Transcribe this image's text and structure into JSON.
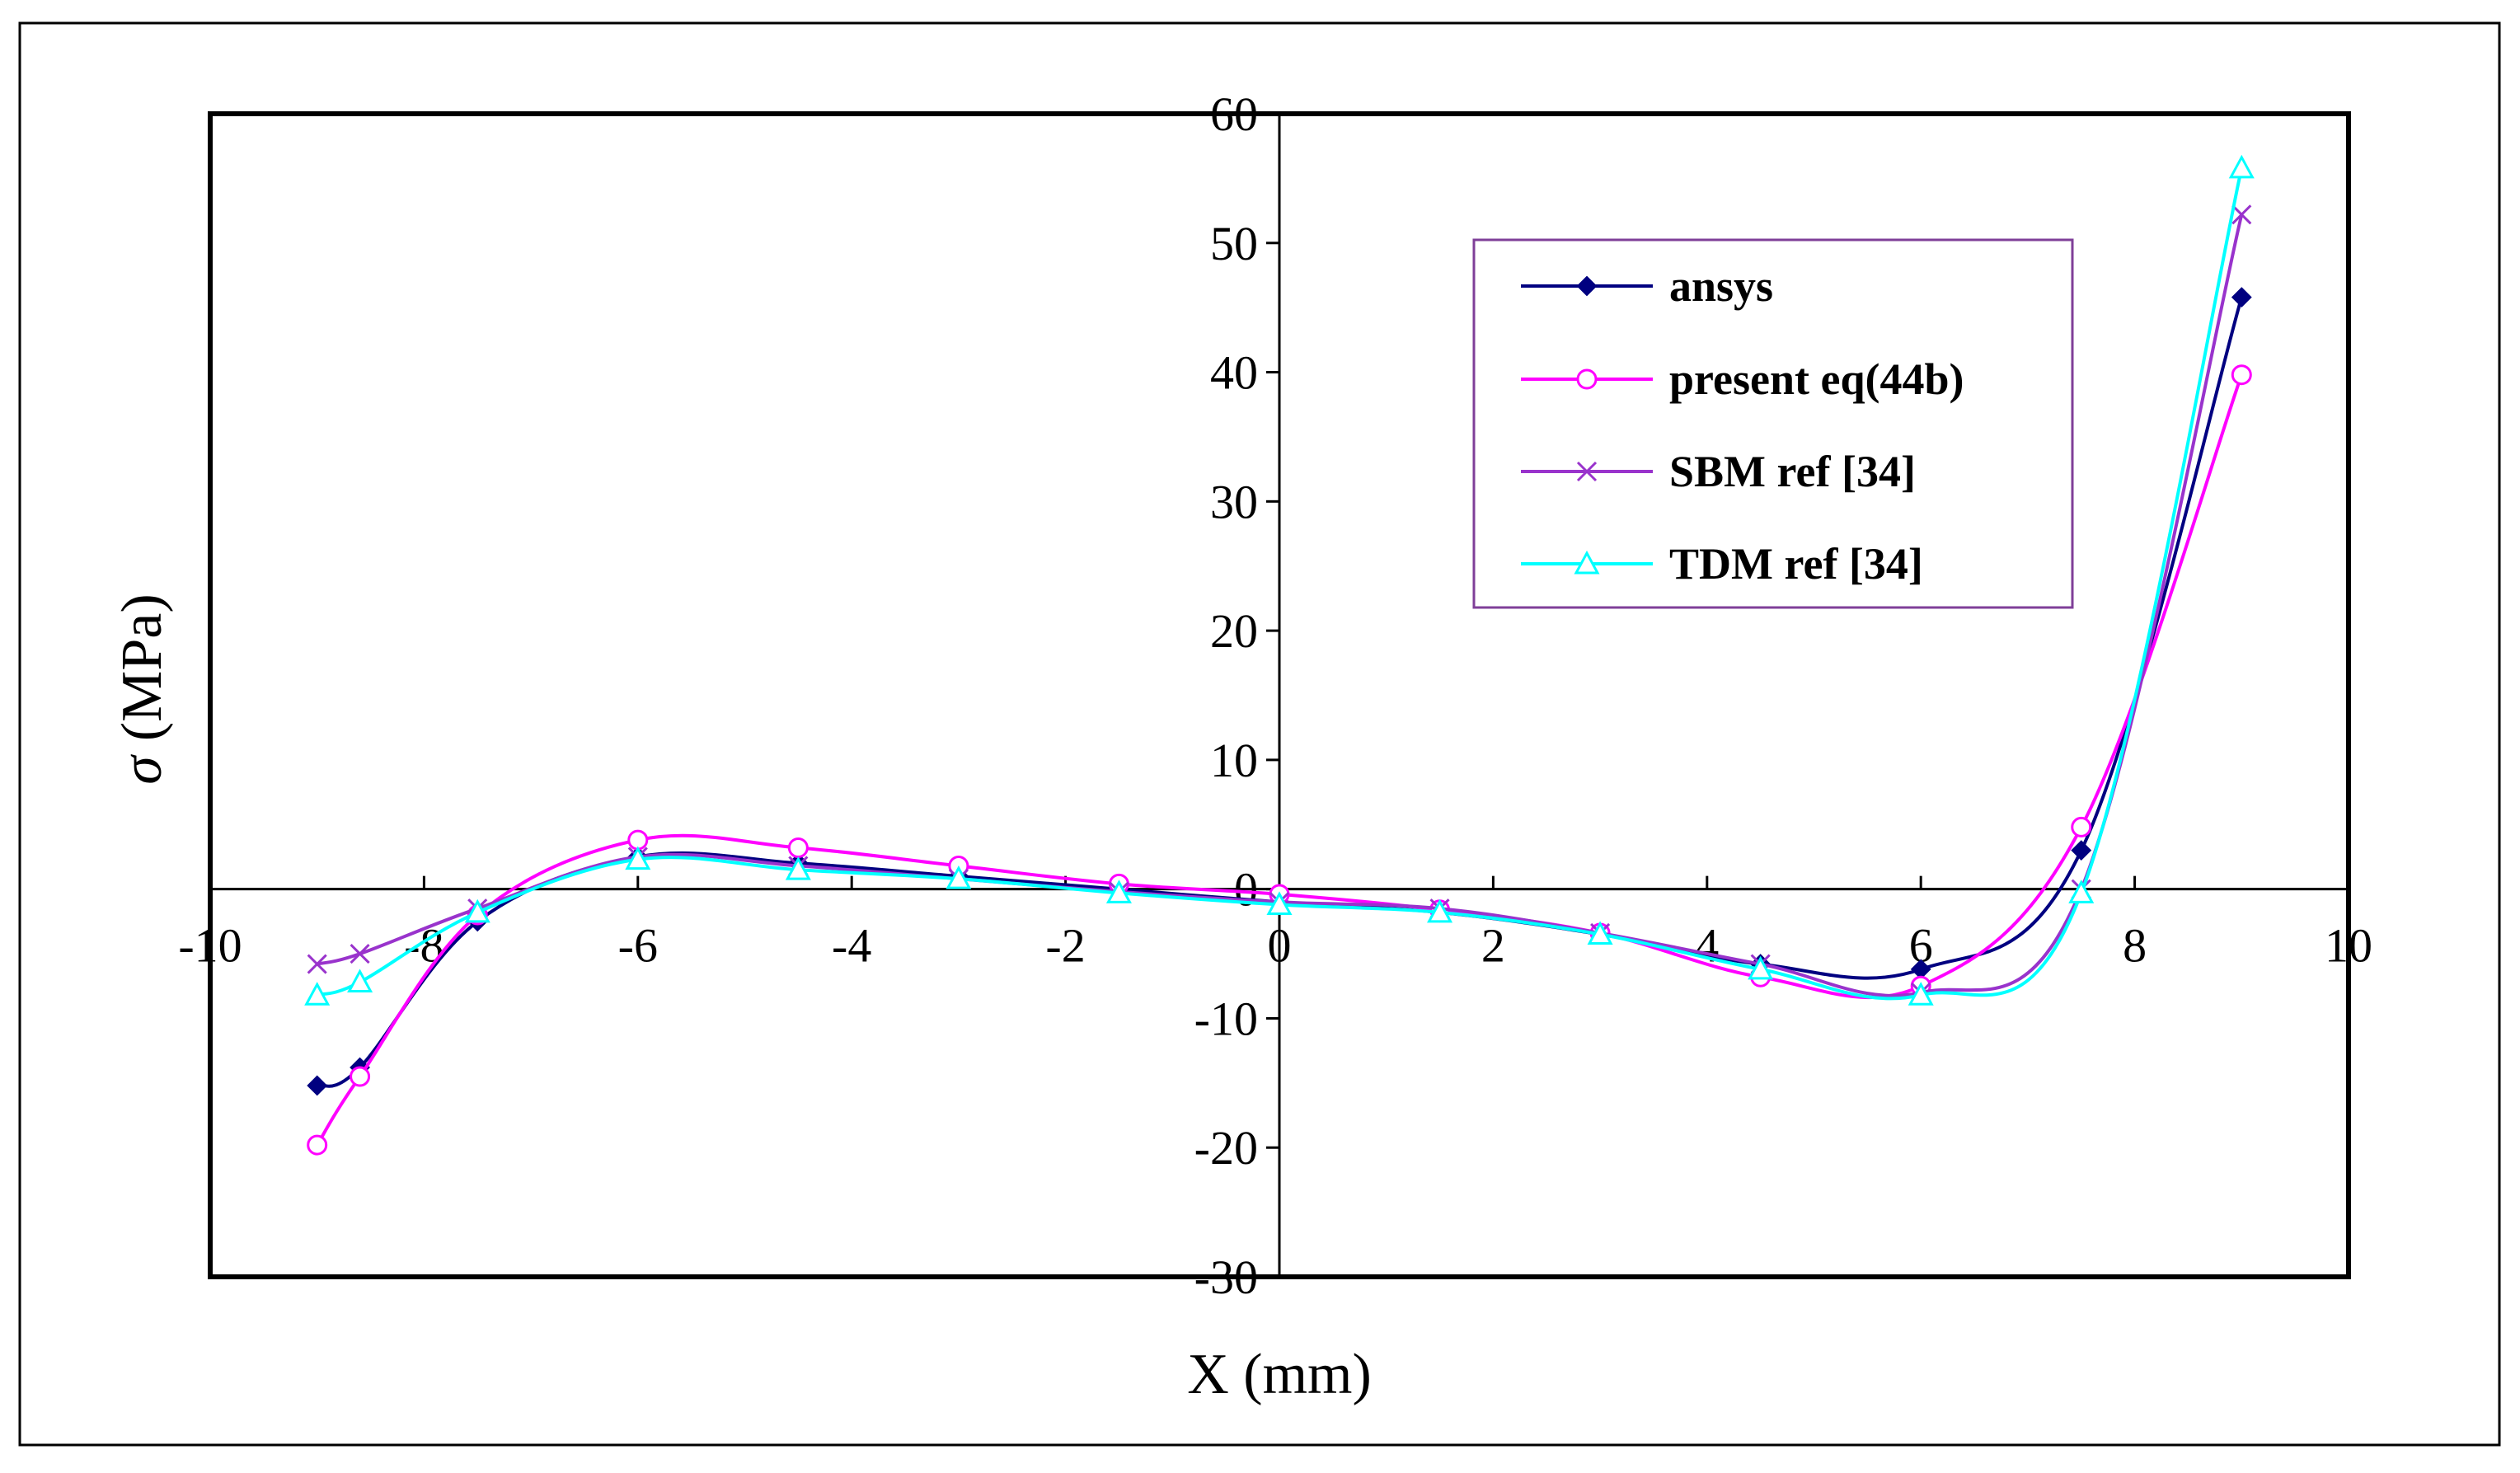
{
  "chart_data": {
    "type": "line",
    "title": "",
    "xlabel": "X (mm)",
    "ylabel_symbol": "σ",
    "ylabel_unit": "(MPa)",
    "xlim": [
      -10,
      10
    ],
    "ylim": [
      -30,
      60
    ],
    "xticks": [
      -10,
      -8,
      -6,
      -4,
      -2,
      0,
      2,
      4,
      6,
      8,
      10
    ],
    "yticks": [
      -30,
      -20,
      -10,
      0,
      10,
      20,
      30,
      40,
      50,
      60
    ],
    "ytick_labels": [
      "-30",
      "-20",
      "-10",
      "0",
      "10",
      "20",
      "30",
      "40",
      "50",
      "60"
    ],
    "xtick_labels": [
      "-10",
      "-8",
      "-6",
      "-4",
      "-2",
      "0",
      "2",
      "4",
      "6",
      "8",
      "10"
    ],
    "grid": false,
    "legend_position": "top-right",
    "series": [
      {
        "name": "ansys",
        "color": "#000080",
        "marker": "diamond",
        "x": [
          -9,
          -8.6,
          -7.5,
          -6,
          -4.5,
          -3,
          -1.5,
          0,
          1.5,
          3,
          4.5,
          6,
          7.5,
          9
        ],
        "y": [
          -15.2,
          -13.8,
          -2.5,
          2.5,
          2.0,
          1.0,
          0.0,
          -1.0,
          -1.8,
          -3.5,
          -5.8,
          -6.2,
          3.0,
          45.8
        ]
      },
      {
        "name": "present eq(44b)",
        "color": "#FF00FF",
        "marker": "circle",
        "x": [
          -9,
          -8.6,
          -7.5,
          -6,
          -4.5,
          -3,
          -1.5,
          0,
          1.5,
          3,
          4.5,
          6,
          7.5,
          9
        ],
        "y": [
          -19.8,
          -14.5,
          -2.0,
          3.8,
          3.2,
          1.8,
          0.4,
          -0.4,
          -1.6,
          -3.4,
          -6.8,
          -7.5,
          4.8,
          39.8
        ]
      },
      {
        "name": "SBM ref [34]",
        "color": "#9933CC",
        "marker": "x",
        "x": [
          -9,
          -8.6,
          -7.5,
          -6,
          -4.5,
          -3,
          -1.5,
          0,
          1.5,
          3,
          4.5,
          6,
          7.5,
          9
        ],
        "y": [
          -5.8,
          -5.0,
          -1.5,
          2.5,
          1.8,
          0.8,
          -0.2,
          -1.0,
          -1.5,
          -3.4,
          -5.8,
          -8.0,
          0.0,
          52.2
        ]
      },
      {
        "name": "TDM ref [34]",
        "color": "#00FFFF",
        "marker": "triangle",
        "x": [
          -9,
          -8.6,
          -7.5,
          -6,
          -4.5,
          -3,
          -1.5,
          0,
          1.5,
          3,
          4.5,
          6,
          7.5,
          9
        ],
        "y": [
          -8.2,
          -7.2,
          -1.8,
          2.3,
          1.5,
          0.8,
          -0.3,
          -1.2,
          -1.8,
          -3.5,
          -6.2,
          -8.2,
          -0.3,
          55.8
        ]
      }
    ]
  }
}
